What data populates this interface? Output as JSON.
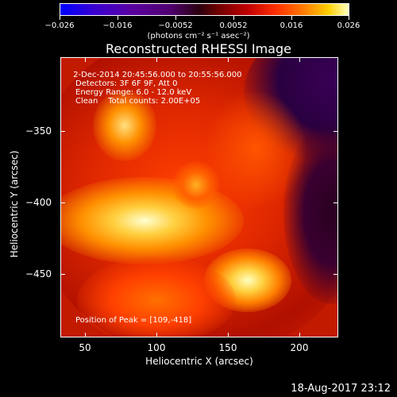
{
  "colorbar": {
    "labels": [
      "−0.026",
      "−0.016",
      "−0.0052",
      "0.0052",
      "0.016",
      "0.026"
    ],
    "units": "(photons cm⁻² s⁻¹ asec⁻²)"
  },
  "title": "Reconstructed RHESSI Image",
  "info": {
    "time": " 2-Dec-2014 20:45:56.000 to 20:55:56.000",
    "detectors": "Detectors: 3F 6F 9F, Att 0",
    "energy": "Energy Range: 6.0 - 12.0 keV",
    "clean": "Clean    Total counts: 2.00E+05",
    "peak": "Position of Peak = [109,-418]"
  },
  "axes": {
    "xlabel": "Heliocentric X (arcsec)",
    "ylabel": "Heliocentric Y (arcsec)",
    "xticks": [
      "50",
      "100",
      "150",
      "200"
    ],
    "yticks": [
      "−350",
      "−400",
      "−450"
    ]
  },
  "timestamp": "18-Aug-2017 23:12",
  "colors": {
    "background": "#000000",
    "text": "#ffffff"
  }
}
